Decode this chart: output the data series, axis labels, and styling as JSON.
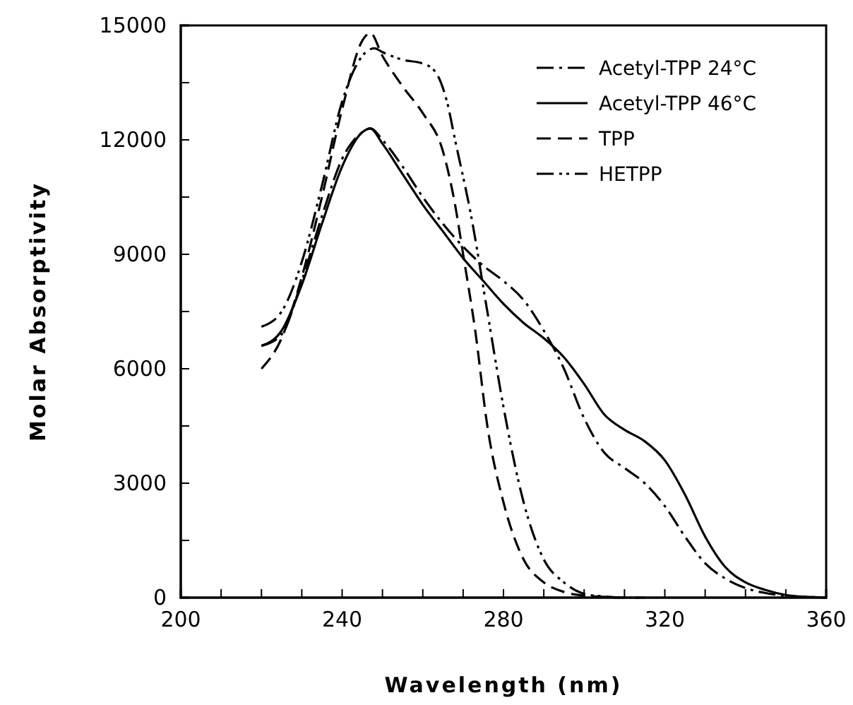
{
  "chart_data": {
    "type": "line",
    "xlabel": "Wavelength (nm)",
    "ylabel": "Molar Absorptivity",
    "xlim": [
      200,
      360
    ],
    "xticks": [
      200,
      240,
      280,
      320,
      360
    ],
    "ylim": [
      0,
      15000
    ],
    "yticks": [
      0,
      3000,
      6000,
      9000,
      12000,
      15000
    ],
    "grid": false,
    "legend": "top right",
    "marker": "none",
    "series": [
      {
        "name": "Acetyl-TPP 24°C",
        "color": "#000000",
        "line_style": "dashdot",
        "x": [
          220,
          225,
          230,
          235,
          240,
          245,
          247,
          250,
          255,
          260,
          265,
          270,
          275,
          280,
          285,
          290,
          295,
          300,
          305,
          310,
          315,
          320,
          325,
          330,
          335,
          340,
          345,
          350,
          355,
          360
        ],
        "values": [
          6600,
          6900,
          8300,
          10000,
          11500,
          12200,
          12300,
          12000,
          11300,
          10500,
          9800,
          9200,
          8700,
          8300,
          7800,
          7000,
          6000,
          4700,
          3800,
          3400,
          3000,
          2400,
          1600,
          900,
          500,
          250,
          120,
          50,
          20,
          0
        ]
      },
      {
        "name": "Acetyl-TPP 46°C",
        "color": "#000000",
        "line_style": "solid",
        "x": [
          220,
          225,
          230,
          235,
          240,
          245,
          247,
          250,
          255,
          260,
          265,
          270,
          275,
          280,
          285,
          290,
          295,
          300,
          305,
          310,
          315,
          320,
          325,
          330,
          335,
          340,
          345,
          350,
          355,
          360
        ],
        "values": [
          6600,
          7000,
          8200,
          9800,
          11300,
          12200,
          12300,
          11900,
          11100,
          10300,
          9600,
          8900,
          8300,
          7700,
          7200,
          6800,
          6300,
          5600,
          4800,
          4400,
          4100,
          3600,
          2700,
          1600,
          800,
          400,
          200,
          70,
          20,
          0
        ]
      },
      {
        "name": "TPP",
        "color": "#000000",
        "line_style": "dashed",
        "x": [
          220,
          225,
          230,
          235,
          240,
          245,
          247,
          250,
          255,
          260,
          265,
          268,
          270,
          273,
          276,
          280,
          285,
          290,
          295,
          300,
          305,
          310,
          315
        ],
        "values": [
          6000,
          6800,
          8400,
          10500,
          12800,
          14600,
          14800,
          14200,
          13400,
          12700,
          11700,
          10300,
          9000,
          7000,
          4500,
          2500,
          1000,
          400,
          150,
          50,
          20,
          0,
          0
        ]
      },
      {
        "name": "HETPP",
        "color": "#000000",
        "line_style": "dashdotdot",
        "x": [
          220,
          225,
          230,
          235,
          240,
          245,
          248,
          250,
          255,
          260,
          263,
          266,
          268,
          272,
          276,
          280,
          285,
          290,
          295,
          300,
          305,
          310,
          315
        ],
        "values": [
          7100,
          7500,
          8800,
          10800,
          13000,
          14200,
          14400,
          14300,
          14100,
          14000,
          13800,
          13000,
          12000,
          10000,
          7500,
          5000,
          2500,
          1000,
          400,
          100,
          30,
          0,
          0
        ]
      }
    ]
  }
}
